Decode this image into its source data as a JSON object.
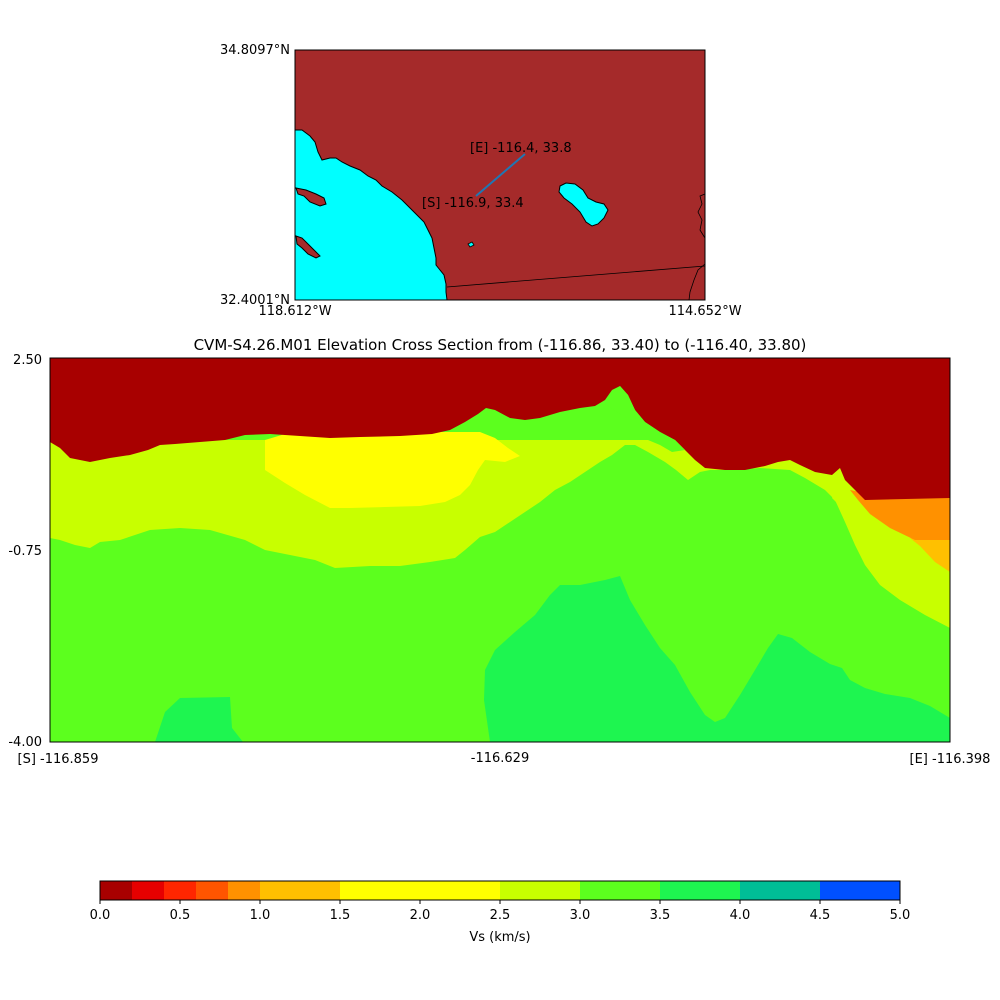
{
  "map": {
    "lat_top_label": "34.8097°N",
    "lat_bottom_label": "32.4001°N",
    "lon_left_label": "118.612°W",
    "lon_right_label": "114.652°W",
    "start_marker_label": "[S] -116.9, 33.4",
    "end_marker_label": "[E] -116.4, 33.8",
    "land_color": "#a52a2a",
    "water_color": "#00ffff",
    "path_color": "#1f77b4"
  },
  "chart_data": {
    "type": "heatmap",
    "title": "CVM-S4.26.M01 Elevation Cross Section from (-116.86, 33.40) to (-116.40, 33.80)",
    "x_tick_labels": [
      "[S] -116.859",
      "-116.629",
      "[E] -116.398"
    ],
    "y_tick_labels": [
      "2.50",
      "-0.75",
      "-4.00"
    ],
    "x_range": [
      -116.859,
      -116.398
    ],
    "y_range": [
      -4.0,
      2.5
    ],
    "colorbar": {
      "label": "Vs (km/s)",
      "boundaries": [
        0.0,
        0.2,
        0.4,
        0.6,
        0.8,
        1.0,
        1.5,
        2.5,
        3.0,
        3.5,
        4.0,
        4.5,
        5.0
      ],
      "colors": [
        "#a80000",
        "#e60000",
        "#ff2600",
        "#ff5500",
        "#ff9100",
        "#ffc000",
        "#ffff00",
        "#c8ff00",
        "#5cff1e",
        "#1ef550",
        "#00be96",
        "#0050ff"
      ],
      "tick_labels": [
        "0.0",
        "0.5",
        "1.0",
        "1.5",
        "2.0",
        "2.5",
        "3.0",
        "3.5",
        "4.0",
        "4.5",
        "5.0"
      ]
    },
    "layers": [
      {
        "vs_range": "0.0-0.2",
        "color": "#a80000"
      },
      {
        "vs_range": "0.8-1.0",
        "color": "#ff9100"
      },
      {
        "vs_range": "1.0-1.5",
        "color": "#ffc000"
      },
      {
        "vs_range": "1.5-2.5",
        "color": "#ffff00"
      },
      {
        "vs_range": "2.5-3.0",
        "color": "#c8ff00"
      },
      {
        "vs_range": "3.0-3.5",
        "color": "#5cff1e"
      },
      {
        "vs_range": "3.5-4.0",
        "color": "#1ef550"
      }
    ]
  }
}
